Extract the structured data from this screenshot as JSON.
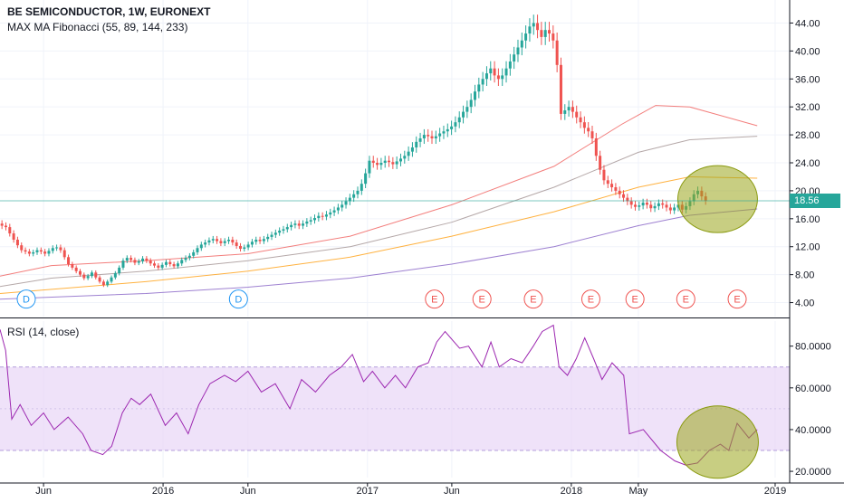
{
  "colors": {
    "up": "#26a69a",
    "down": "#ef5350",
    "ma55": "#ef5350",
    "ma89": "#9c8b8b",
    "ma144": "#ff9800",
    "ma233": "#7e57c2",
    "rsi": "#9c27b0",
    "band": "#e8d5f7",
    "highlight": "#9aa51c",
    "axis": "#131722",
    "grid": "#f0f3fa",
    "last_price_line": "#26a69a"
  },
  "legend": {
    "symbol": "BE SEMICONDUCTOR, 1W, EURONEXT",
    "indicator": "MAX MA Fibonacci (55, 89, 144, 233)",
    "rsi": "RSI (14, close)"
  },
  "last_price": "18.56",
  "chart_data": [
    {
      "type": "candlestick",
      "title": "BE SEMICONDUCTOR, 1W, EURONEXT",
      "x_ticks": [
        "Jun",
        "2016",
        "Jun",
        "2017",
        "Jun",
        "2018",
        "May",
        "2019"
      ],
      "y_ticks": [
        "4.00",
        "8.00",
        "12.00",
        "16.00",
        "20.00",
        "24.00",
        "28.00",
        "32.00",
        "36.00",
        "40.00",
        "44.00"
      ],
      "ylim": [
        2.0,
        46.0
      ],
      "xlim": [
        "2015-03-15",
        "2019-01-27"
      ],
      "candles_close": [
        15.0,
        14.8,
        13.9,
        13.0,
        12.2,
        11.5,
        11.3,
        11.0,
        11.2,
        11.5,
        11.3,
        11.0,
        11.4,
        11.8,
        11.9,
        11.5,
        10.5,
        9.5,
        9.0,
        8.5,
        8.0,
        7.5,
        7.8,
        8.3,
        7.6,
        7.0,
        6.5,
        7.0,
        7.6,
        8.2,
        9.0,
        10.0,
        10.4,
        10.1,
        9.7,
        9.9,
        10.3,
        10.0,
        9.6,
        9.3,
        9.0,
        9.4,
        9.8,
        9.5,
        9.2,
        9.6,
        10.1,
        10.4,
        10.7,
        11.2,
        11.8,
        12.3,
        12.6,
        12.9,
        13.1,
        12.8,
        12.5,
        12.8,
        13.0,
        12.6,
        12.1,
        11.7,
        11.9,
        12.3,
        12.7,
        13.0,
        12.8,
        13.1,
        13.4,
        13.7,
        14.0,
        14.3,
        14.5,
        14.8,
        15.1,
        15.3,
        15.0,
        15.3,
        15.6,
        15.8,
        16.1,
        16.4,
        16.3,
        16.6,
        16.9,
        17.2,
        17.6,
        18.0,
        18.5,
        19.0,
        19.5,
        20.0,
        21.0,
        22.5,
        24.3,
        24.0,
        23.7,
        24.0,
        24.3,
        24.1,
        23.8,
        24.2,
        24.6,
        25.0,
        25.6,
        26.2,
        27.0,
        27.5,
        28.0,
        27.8,
        27.5,
        27.8,
        28.2,
        28.5,
        28.8,
        29.2,
        29.8,
        30.5,
        31.3,
        32.0,
        33.0,
        34.2,
        35.2,
        36.0,
        36.8,
        37.5,
        36.5,
        36.0,
        36.5,
        37.5,
        38.5,
        39.5,
        40.5,
        41.5,
        42.5,
        43.5,
        44.0,
        43.0,
        42.0,
        43.0,
        42.5,
        41.5,
        38.0,
        31.0,
        31.5,
        32.0,
        31.3,
        30.5,
        29.8,
        29.0,
        28.5,
        27.5,
        25.0,
        23.0,
        21.5,
        21.0,
        20.5,
        20.0,
        19.5,
        19.0,
        18.5,
        18.0,
        17.7,
        17.9,
        18.3,
        18.0,
        17.5,
        17.8,
        18.2,
        18.0,
        17.6,
        17.2,
        17.6,
        18.0,
        17.3,
        17.8,
        18.5,
        19.5,
        20.0,
        19.2,
        18.56
      ],
      "series": [
        {
          "name": "MA 55",
          "points": [
            [
              "2015-03-15",
              7.8
            ],
            [
              "2015-06-15",
              9.3
            ],
            [
              "2015-12-01",
              10.0
            ],
            [
              "2016-06-01",
              11.0
            ],
            [
              "2016-12-01",
              13.5
            ],
            [
              "2017-06-01",
              18.0
            ],
            [
              "2017-12-01",
              23.5
            ],
            [
              "2018-04-01",
              29.5
            ],
            [
              "2018-06-01",
              32.2
            ],
            [
              "2018-08-01",
              32.0
            ],
            [
              "2018-11-30",
              29.3
            ]
          ]
        },
        {
          "name": "MA 89",
          "points": [
            [
              "2015-03-15",
              6.3
            ],
            [
              "2015-06-15",
              7.5
            ],
            [
              "2015-12-01",
              8.5
            ],
            [
              "2016-06-01",
              10.0
            ],
            [
              "2016-12-01",
              12.0
            ],
            [
              "2017-06-01",
              15.5
            ],
            [
              "2017-12-01",
              20.5
            ],
            [
              "2018-05-01",
              25.5
            ],
            [
              "2018-08-01",
              27.3
            ],
            [
              "2018-11-30",
              27.8
            ]
          ]
        },
        {
          "name": "MA 144",
          "points": [
            [
              "2015-03-15",
              5.3
            ],
            [
              "2015-12-01",
              7.0
            ],
            [
              "2016-06-01",
              8.5
            ],
            [
              "2016-12-01",
              10.5
            ],
            [
              "2017-06-01",
              13.5
            ],
            [
              "2017-12-01",
              17.0
            ],
            [
              "2018-05-01",
              20.5
            ],
            [
              "2018-08-01",
              22.0
            ],
            [
              "2018-11-30",
              21.8
            ]
          ]
        },
        {
          "name": "MA 233",
          "points": [
            [
              "2015-03-15",
              4.5
            ],
            [
              "2015-12-01",
              5.3
            ],
            [
              "2016-06-01",
              6.2
            ],
            [
              "2016-12-01",
              7.5
            ],
            [
              "2017-06-01",
              9.5
            ],
            [
              "2017-12-01",
              12.0
            ],
            [
              "2018-05-01",
              15.0
            ],
            [
              "2018-08-01",
              16.5
            ],
            [
              "2018-11-30",
              17.4
            ]
          ]
        }
      ],
      "last_value": 18.56,
      "event_markers": [
        {
          "label": "D",
          "date": "2015-05-01"
        },
        {
          "label": "D",
          "date": "2016-05-15"
        },
        {
          "label": "E",
          "date": "2017-05-01"
        },
        {
          "label": "E",
          "date": "2017-07-25"
        },
        {
          "label": "E",
          "date": "2017-10-25"
        },
        {
          "label": "E",
          "date": "2018-02-05"
        },
        {
          "label": "E",
          "date": "2018-04-25"
        },
        {
          "label": "E",
          "date": "2018-07-25"
        },
        {
          "label": "E",
          "date": "2018-10-25"
        }
      ],
      "grid": true
    },
    {
      "type": "line",
      "title": "RSI (14, close)",
      "y_ticks": [
        "20.0000",
        "40.0000",
        "60.0000",
        "80.0000"
      ],
      "ylim": [
        17.0,
        92.0
      ],
      "band": [
        30,
        70
      ],
      "series": [
        {
          "points": [
            [
              "2015-03-15",
              88
            ],
            [
              "2015-03-25",
              78
            ],
            [
              "2015-04-05",
              45
            ],
            [
              "2015-04-20",
              52
            ],
            [
              "2015-05-10",
              42
            ],
            [
              "2015-06-01",
              48
            ],
            [
              "2015-06-20",
              40
            ],
            [
              "2015-07-15",
              46
            ],
            [
              "2015-08-10",
              38
            ],
            [
              "2015-08-25",
              30
            ],
            [
              "2015-09-15",
              28
            ],
            [
              "2015-10-01",
              32
            ],
            [
              "2015-10-20",
              48
            ],
            [
              "2015-11-05",
              55
            ],
            [
              "2015-11-20",
              52
            ],
            [
              "2015-12-10",
              57
            ],
            [
              "2016-01-05",
              42
            ],
            [
              "2016-01-25",
              48
            ],
            [
              "2016-02-15",
              38
            ],
            [
              "2016-03-05",
              52
            ],
            [
              "2016-03-25",
              62
            ],
            [
              "2016-04-20",
              66
            ],
            [
              "2016-05-10",
              63
            ],
            [
              "2016-06-01",
              68
            ],
            [
              "2016-06-25",
              58
            ],
            [
              "2016-07-20",
              62
            ],
            [
              "2016-08-15",
              50
            ],
            [
              "2016-09-05",
              64
            ],
            [
              "2016-09-30",
              58
            ],
            [
              "2016-10-25",
              66
            ],
            [
              "2016-11-15",
              70
            ],
            [
              "2016-12-05",
              76
            ],
            [
              "2016-12-25",
              63
            ],
            [
              "2017-01-10",
              68
            ],
            [
              "2017-02-01",
              60
            ],
            [
              "2017-02-20",
              66
            ],
            [
              "2017-03-10",
              60
            ],
            [
              "2017-04-01",
              70
            ],
            [
              "2017-04-20",
              72
            ],
            [
              "2017-05-05",
              82
            ],
            [
              "2017-05-20",
              87
            ],
            [
              "2017-06-15",
              79
            ],
            [
              "2017-07-01",
              80
            ],
            [
              "2017-07-25",
              70
            ],
            [
              "2017-08-10",
              82
            ],
            [
              "2017-08-25",
              70
            ],
            [
              "2017-09-15",
              74
            ],
            [
              "2017-10-05",
              72
            ],
            [
              "2017-10-25",
              80
            ],
            [
              "2017-11-10",
              87
            ],
            [
              "2017-11-30",
              90
            ],
            [
              "2017-12-10",
              70
            ],
            [
              "2017-12-25",
              66
            ],
            [
              "2018-01-10",
              74
            ],
            [
              "2018-01-25",
              84
            ],
            [
              "2018-02-10",
              74
            ],
            [
              "2018-02-25",
              64
            ],
            [
              "2018-03-15",
              72
            ],
            [
              "2018-04-05",
              66
            ],
            [
              "2018-04-15",
              38
            ],
            [
              "2018-05-10",
              40
            ],
            [
              "2018-06-10",
              30
            ],
            [
              "2018-07-05",
              25
            ],
            [
              "2018-07-25",
              23
            ],
            [
              "2018-08-15",
              24
            ],
            [
              "2018-09-05",
              30
            ],
            [
              "2018-09-25",
              33
            ],
            [
              "2018-10-10",
              30
            ],
            [
              "2018-10-25",
              43
            ],
            [
              "2018-11-15",
              36
            ],
            [
              "2018-11-30",
              40
            ]
          ]
        }
      ]
    }
  ]
}
